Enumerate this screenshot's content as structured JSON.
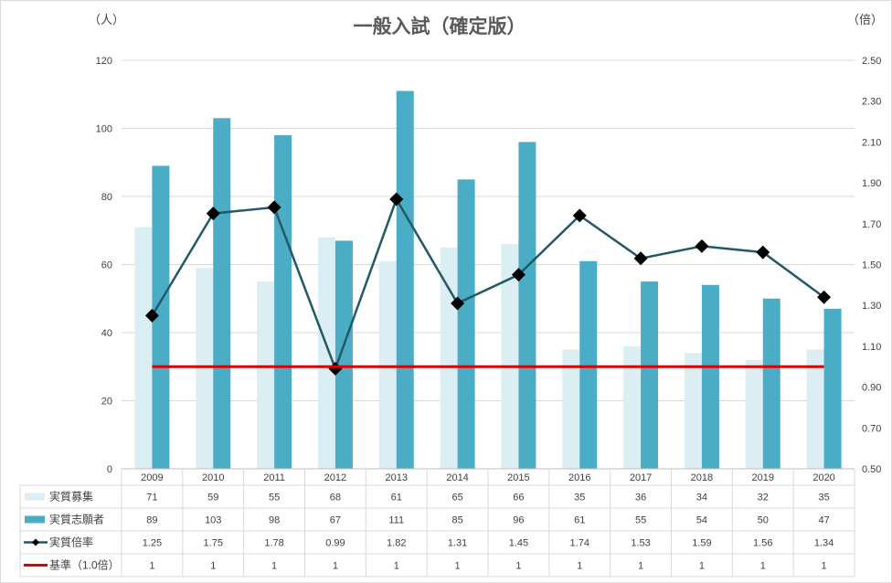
{
  "chart_data": {
    "type": "bar",
    "title": "一般入試（確定版）",
    "y_unit_left": "（人）",
    "y_unit_right": "（倍）",
    "categories": [
      "2009",
      "2010",
      "2011",
      "2012",
      "2013",
      "2014",
      "2015",
      "2016",
      "2017",
      "2018",
      "2019",
      "2020"
    ],
    "ylim_left": [
      0,
      120
    ],
    "yticks_left": [
      "0",
      "20",
      "40",
      "60",
      "80",
      "100",
      "120"
    ],
    "ylim_right": [
      0.5,
      2.5
    ],
    "yticks_right": [
      "0.50",
      "0.70",
      "0.90",
      "1.10",
      "1.30",
      "1.50",
      "1.70",
      "1.90",
      "2.10",
      "2.30",
      "2.50"
    ],
    "grid": true,
    "legend": "data-table-left",
    "series": [
      {
        "name": "実質募集",
        "type": "bar",
        "axis": "left",
        "color": "#daeef3",
        "values": [
          71,
          59,
          55,
          68,
          61,
          65,
          66,
          35,
          36,
          34,
          32,
          35
        ]
      },
      {
        "name": "実質志願者",
        "type": "bar",
        "axis": "left",
        "color": "#4bacc6",
        "values": [
          89,
          103,
          98,
          67,
          111,
          85,
          96,
          61,
          55,
          54,
          50,
          47
        ]
      },
      {
        "name": "実質倍率",
        "type": "line",
        "axis": "right",
        "color": "#215967",
        "marker": "diamond",
        "marker_color": "#000000",
        "values": [
          1.25,
          1.75,
          1.78,
          0.99,
          1.82,
          1.31,
          1.45,
          1.74,
          1.53,
          1.59,
          1.56,
          1.34
        ]
      },
      {
        "name": "基準（1.0倍）",
        "type": "line",
        "axis": "right",
        "color": "#e00000",
        "values": [
          1,
          1,
          1,
          1,
          1,
          1,
          1,
          1,
          1,
          1,
          1,
          1
        ]
      }
    ],
    "table_values": [
      [
        "71",
        "59",
        "55",
        "68",
        "61",
        "65",
        "66",
        "35",
        "36",
        "34",
        "32",
        "35"
      ],
      [
        "89",
        "103",
        "98",
        "67",
        "111",
        "85",
        "96",
        "61",
        "55",
        "54",
        "50",
        "47"
      ],
      [
        "1.25",
        "1.75",
        "1.78",
        "0.99",
        "1.82",
        "1.31",
        "1.45",
        "1.74",
        "1.53",
        "1.59",
        "1.56",
        "1.34"
      ],
      [
        "1",
        "1",
        "1",
        "1",
        "1",
        "1",
        "1",
        "1",
        "1",
        "1",
        "1",
        "1"
      ]
    ]
  }
}
